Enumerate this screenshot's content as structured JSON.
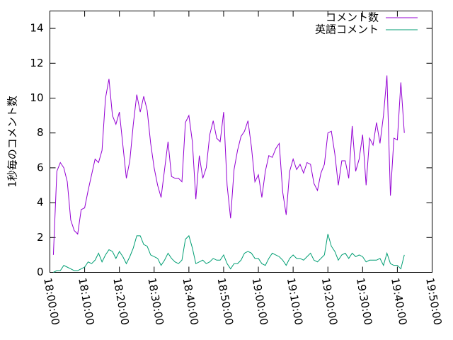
{
  "chart_data": {
    "type": "line",
    "y_label": "1秒毎のコメント数",
    "xlim": [
      "18:00:00",
      "19:50:00"
    ],
    "xticks": [
      "18:00:00",
      "18:10:00",
      "18:20:00",
      "18:30:00",
      "18:40:00",
      "18:50:00",
      "19:00:00",
      "19:10:00",
      "19:20:00",
      "19:30:00",
      "19:40:00",
      "19:50:00"
    ],
    "ylim": [
      0,
      15
    ],
    "yticks": [
      0,
      2,
      4,
      6,
      8,
      10,
      12,
      14
    ],
    "legend": "top-right",
    "x": [
      "18:01:00",
      "18:02:00",
      "18:03:00",
      "18:04:00",
      "18:05:00",
      "18:06:00",
      "18:07:00",
      "18:08:00",
      "18:09:00",
      "18:10:00",
      "18:11:00",
      "18:12:00",
      "18:13:00",
      "18:14:00",
      "18:15:00",
      "18:16:00",
      "18:17:00",
      "18:18:00",
      "18:19:00",
      "18:20:00",
      "18:21:00",
      "18:22:00",
      "18:23:00",
      "18:24:00",
      "18:25:00",
      "18:26:00",
      "18:27:00",
      "18:28:00",
      "18:29:00",
      "18:30:00",
      "18:31:00",
      "18:32:00",
      "18:33:00",
      "18:34:00",
      "18:35:00",
      "18:36:00",
      "18:37:00",
      "18:38:00",
      "18:39:00",
      "18:40:00",
      "18:41:00",
      "18:42:00",
      "18:43:00",
      "18:44:00",
      "18:45:00",
      "18:46:00",
      "18:47:00",
      "18:48:00",
      "18:49:00",
      "18:50:00",
      "18:51:00",
      "18:52:00",
      "18:53:00",
      "18:54:00",
      "18:55:00",
      "18:56:00",
      "18:57:00",
      "18:58:00",
      "18:59:00",
      "19:00:00",
      "19:01:00",
      "19:02:00",
      "19:03:00",
      "19:04:00",
      "19:05:00",
      "19:06:00",
      "19:07:00",
      "19:08:00",
      "19:09:00",
      "19:10:00",
      "19:11:00",
      "19:12:00",
      "19:13:00",
      "19:14:00",
      "19:15:00",
      "19:16:00",
      "19:17:00",
      "19:18:00",
      "19:19:00",
      "19:20:00",
      "19:21:00",
      "19:22:00",
      "19:23:00",
      "19:24:00",
      "19:25:00",
      "19:26:00",
      "19:27:00",
      "19:28:00",
      "19:29:00",
      "19:30:00",
      "19:31:00",
      "19:32:00",
      "19:33:00",
      "19:34:00",
      "19:35:00",
      "19:36:00",
      "19:37:00",
      "19:38:00",
      "19:39:00",
      "19:40:00",
      "19:41:00",
      "19:42:00"
    ],
    "series": [
      {
        "name": "コメント数",
        "color": "#9400d3",
        "values": [
          1.0,
          5.8,
          6.3,
          6.0,
          5.2,
          3.0,
          2.4,
          2.2,
          3.6,
          3.7,
          4.7,
          5.6,
          6.5,
          6.3,
          7.0,
          10.0,
          11.1,
          9.0,
          8.5,
          9.2,
          7.3,
          5.4,
          6.4,
          8.5,
          10.2,
          9.2,
          10.1,
          9.3,
          7.4,
          6.0,
          5.0,
          4.3,
          5.9,
          7.5,
          5.5,
          5.4,
          5.4,
          5.2,
          8.6,
          9.0,
          7.5,
          4.2,
          6.7,
          5.4,
          6.0,
          7.9,
          8.7,
          7.7,
          7.5,
          9.2,
          5.0,
          3.1,
          5.9,
          7.0,
          7.8,
          8.1,
          8.7,
          7.2,
          5.2,
          5.6,
          4.3,
          5.8,
          6.7,
          6.6,
          7.1,
          7.4,
          4.6,
          3.3,
          5.8,
          6.5,
          5.9,
          6.2,
          5.7,
          6.3,
          6.2,
          5.1,
          4.7,
          5.7,
          6.2,
          8.0,
          8.1,
          6.8,
          5.0,
          6.4,
          6.4,
          5.4,
          8.4,
          5.8,
          6.5,
          7.9,
          5.0,
          7.7,
          7.3,
          8.6,
          7.4,
          9.0,
          11.3,
          4.4,
          7.7,
          7.6,
          10.9,
          8.0
        ]
      },
      {
        "name": "英語コメント",
        "color": "#009e73",
        "values": [
          0.0,
          0.1,
          0.1,
          0.4,
          0.3,
          0.2,
          0.1,
          0.1,
          0.2,
          0.3,
          0.6,
          0.5,
          0.7,
          1.1,
          0.6,
          1.0,
          1.3,
          1.2,
          0.8,
          1.2,
          0.9,
          0.5,
          0.9,
          1.4,
          2.1,
          2.1,
          1.6,
          1.5,
          1.0,
          0.9,
          0.8,
          0.4,
          0.7,
          1.1,
          0.8,
          0.6,
          0.5,
          0.7,
          1.9,
          2.1,
          1.4,
          0.5,
          0.6,
          0.7,
          0.5,
          0.6,
          0.8,
          0.7,
          0.7,
          1.0,
          0.5,
          0.2,
          0.5,
          0.5,
          0.7,
          1.1,
          1.2,
          1.1,
          0.8,
          0.8,
          0.5,
          0.4,
          0.8,
          1.1,
          1.0,
          0.9,
          0.7,
          0.4,
          0.8,
          1.0,
          0.8,
          0.8,
          0.7,
          0.9,
          1.1,
          0.7,
          0.6,
          0.8,
          1.0,
          2.2,
          1.5,
          1.2,
          0.7,
          1.0,
          1.1,
          0.8,
          1.1,
          0.9,
          1.0,
          0.9,
          0.6,
          0.7,
          0.7,
          0.7,
          0.8,
          0.4,
          1.1,
          0.5,
          0.4,
          0.4,
          0.2,
          1.0
        ]
      }
    ]
  }
}
